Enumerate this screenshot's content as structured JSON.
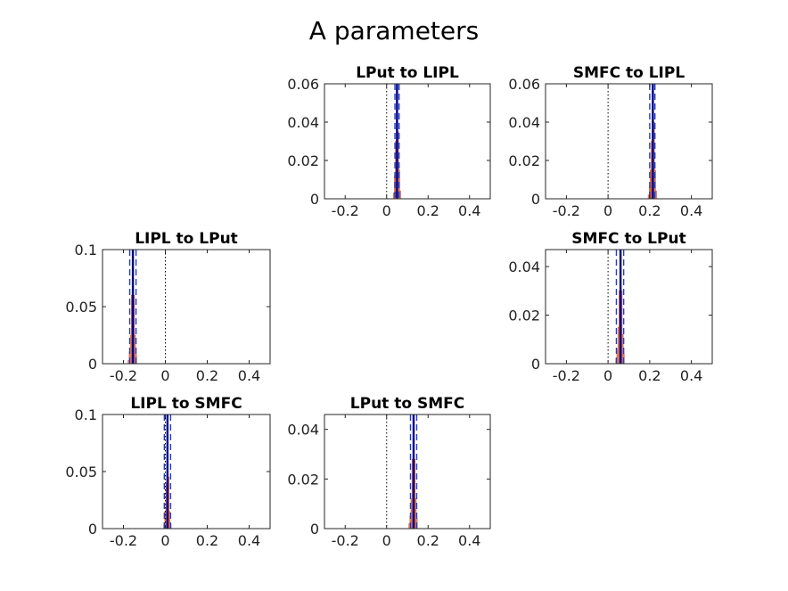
{
  "title": "A parameters",
  "colors": {
    "histogram": "#f5b17a",
    "histogram_dark": "#c8432a",
    "mean_line": "#000080",
    "interval_line": "#1f3ccf",
    "zero_line": "#000000",
    "axis": "#262626"
  },
  "chart_data": [
    {
      "type": "bar",
      "title": "LPut to LIPL",
      "grid_position": "row-1-col-2",
      "xlim": [
        -0.3,
        0.5
      ],
      "ylim": [
        0,
        0.06
      ],
      "xticks": [
        -0.2,
        0,
        0.2,
        0.4
      ],
      "xtick_labels": [
        "-0.2",
        "0",
        "0.2",
        "0.4"
      ],
      "yticks": [
        0,
        0.02,
        0.04,
        0.06
      ],
      "ytick_labels": [
        "0",
        "0.02",
        "0.04",
        "0.06"
      ],
      "mean": 0.05,
      "interval": [
        0.04,
        0.06
      ],
      "hist_x": [
        0.035,
        0.04,
        0.045,
        0.05,
        0.055,
        0.06,
        0.065
      ],
      "hist_y": [
        0.003,
        0.012,
        0.03,
        0.06,
        0.035,
        0.015,
        0.004
      ]
    },
    {
      "type": "bar",
      "title": "SMFC to LIPL",
      "grid_position": "row-1-col-3",
      "xlim": [
        -0.3,
        0.5
      ],
      "ylim": [
        0,
        0.06
      ],
      "xticks": [
        -0.2,
        0,
        0.2,
        0.4
      ],
      "xtick_labels": [
        "-0.2",
        "0",
        "0.2",
        "0.4"
      ],
      "yticks": [
        0,
        0.02,
        0.04,
        0.06
      ],
      "ytick_labels": [
        "0",
        "0.02",
        "0.04",
        "0.06"
      ],
      "mean": 0.215,
      "interval": [
        0.2,
        0.225
      ],
      "hist_x": [
        0.195,
        0.2,
        0.205,
        0.21,
        0.215,
        0.22,
        0.225,
        0.23
      ],
      "hist_y": [
        0.002,
        0.006,
        0.015,
        0.03,
        0.06,
        0.04,
        0.015,
        0.004
      ]
    },
    {
      "type": "bar",
      "title": "LIPL to LPut",
      "grid_position": "row-2-col-1",
      "xlim": [
        -0.3,
        0.5
      ],
      "ylim": [
        0,
        0.1
      ],
      "xticks": [
        -0.2,
        0,
        0.2,
        0.4
      ],
      "xtick_labels": [
        "-0.2",
        "0",
        "0.2",
        "0.4"
      ],
      "yticks": [
        0,
        0.05,
        0.1
      ],
      "ytick_labels": [
        "0",
        "0.05",
        "0.1"
      ],
      "mean": -0.155,
      "interval": [
        -0.17,
        -0.14
      ],
      "hist_x": [
        -0.175,
        -0.17,
        -0.165,
        -0.16,
        -0.155,
        -0.15,
        -0.145,
        -0.14
      ],
      "hist_y": [
        0.003,
        0.01,
        0.025,
        0.06,
        0.1,
        0.06,
        0.025,
        0.008
      ]
    },
    {
      "type": "bar",
      "title": "SMFC to LPut",
      "grid_position": "row-2-col-3",
      "xlim": [
        -0.3,
        0.5
      ],
      "ylim": [
        0,
        0.047
      ],
      "xticks": [
        -0.2,
        0,
        0.2,
        0.4
      ],
      "xtick_labels": [
        "-0.2",
        "0",
        "0.2",
        "0.4"
      ],
      "yticks": [
        0,
        0.02,
        0.04
      ],
      "ytick_labels": [
        "0",
        "0.02",
        "0.04"
      ],
      "mean": 0.06,
      "interval": [
        0.04,
        0.075
      ],
      "hist_x": [
        0.04,
        0.045,
        0.05,
        0.055,
        0.06,
        0.065,
        0.07,
        0.075
      ],
      "hist_y": [
        0.002,
        0.006,
        0.015,
        0.03,
        0.046,
        0.03,
        0.012,
        0.004
      ]
    },
    {
      "type": "bar",
      "title": "LIPL to SMFC",
      "grid_position": "row-3-col-1",
      "xlim": [
        -0.3,
        0.5
      ],
      "ylim": [
        0,
        0.1
      ],
      "xticks": [
        -0.2,
        0,
        0.2,
        0.4
      ],
      "xtick_labels": [
        "-0.2",
        "0",
        "0.2",
        "0.4"
      ],
      "yticks": [
        0,
        0.05,
        0.1
      ],
      "ytick_labels": [
        "0",
        "0.05",
        "0.1"
      ],
      "mean": 0.01,
      "interval": [
        -0.005,
        0.025
      ],
      "hist_x": [
        -0.005,
        0.0,
        0.005,
        0.01,
        0.015,
        0.02,
        0.025
      ],
      "hist_y": [
        0.004,
        0.015,
        0.04,
        0.1,
        0.045,
        0.015,
        0.004
      ]
    },
    {
      "type": "bar",
      "title": "LPut to SMFC",
      "grid_position": "row-3-col-2",
      "xlim": [
        -0.3,
        0.5
      ],
      "ylim": [
        0,
        0.046
      ],
      "xticks": [
        -0.2,
        0,
        0.2,
        0.4
      ],
      "xtick_labels": [
        "-0.2",
        "0",
        "0.2",
        "0.4"
      ],
      "yticks": [
        0,
        0.02,
        0.04
      ],
      "ytick_labels": [
        "0",
        "0.02",
        "0.04"
      ],
      "mean": 0.13,
      "interval": [
        0.115,
        0.145
      ],
      "hist_x": [
        0.11,
        0.115,
        0.12,
        0.125,
        0.13,
        0.135,
        0.14,
        0.145
      ],
      "hist_y": [
        0.002,
        0.005,
        0.012,
        0.028,
        0.045,
        0.028,
        0.012,
        0.004
      ]
    }
  ]
}
